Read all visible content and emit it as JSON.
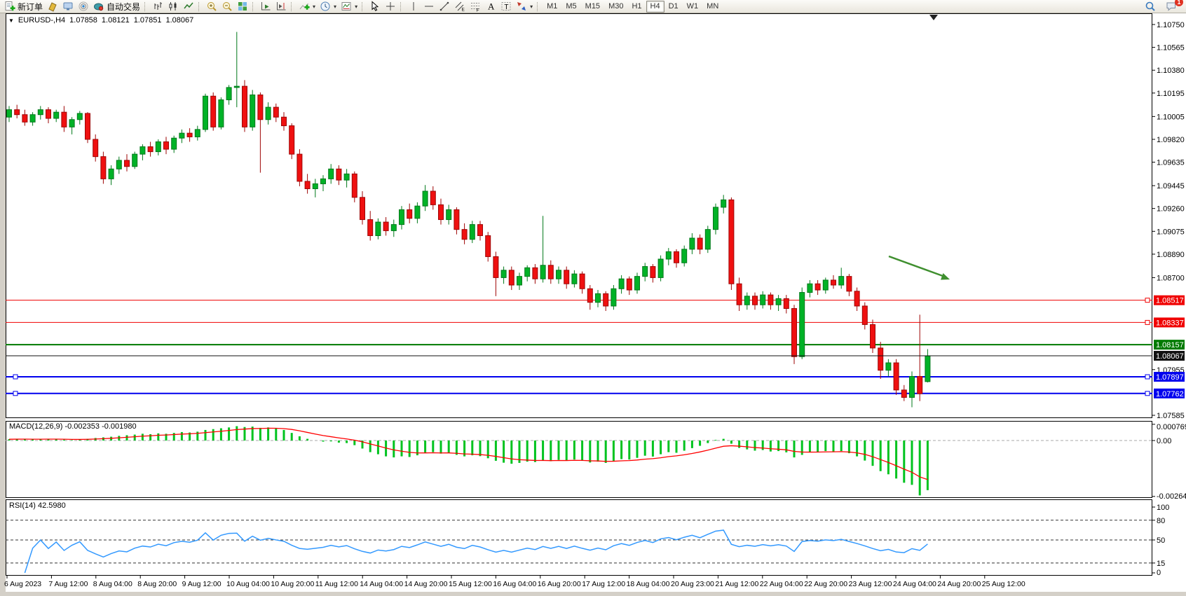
{
  "toolbar": {
    "items": [
      {
        "name": "new-order-button",
        "icon": "new-order",
        "label": "新订单"
      },
      {
        "name": "new-chart-button",
        "icon": "new-chart"
      },
      {
        "name": "profiles-button",
        "icon": "profiles"
      },
      {
        "name": "data-center-button",
        "icon": "signal"
      },
      {
        "name": "auto-trading-button",
        "icon": "auto-trading",
        "label": "自动交易"
      },
      {
        "sep": true
      },
      {
        "name": "bar-chart-button",
        "icon": "bar-chart"
      },
      {
        "name": "candlestick-chart-button",
        "icon": "candlestick-chart"
      },
      {
        "name": "line-chart-button",
        "icon": "line-chart"
      },
      {
        "sep": true
      },
      {
        "name": "zoom-in-button",
        "icon": "zoom-in"
      },
      {
        "name": "zoom-out-button",
        "icon": "zoom-out"
      },
      {
        "name": "tile-windows-button",
        "icon": "tile-windows"
      },
      {
        "sep": true
      },
      {
        "name": "auto-scroll-button",
        "icon": "auto-scroll"
      },
      {
        "name": "chart-shift-button",
        "icon": "chart-shift"
      },
      {
        "sep": true
      },
      {
        "name": "indicators-button",
        "icon": "indicators",
        "dropdown": true
      },
      {
        "name": "periods-button",
        "icon": "clock",
        "dropdown": true
      },
      {
        "name": "templates-button",
        "icon": "template",
        "dropdown": true
      },
      {
        "sep": true
      },
      {
        "name": "cursor-button",
        "icon": "cursor"
      },
      {
        "name": "crosshair-button",
        "icon": "crosshair"
      },
      {
        "sep": true
      },
      {
        "name": "vertical-line-button",
        "icon": "vline"
      },
      {
        "name": "horizontal-line-button",
        "icon": "hline"
      },
      {
        "name": "trendline-button",
        "icon": "trendline"
      },
      {
        "name": "equidistant-channel-button",
        "icon": "channel"
      },
      {
        "name": "fibonacci-button",
        "icon": "fibonacci"
      },
      {
        "name": "text-button",
        "icon": "text"
      },
      {
        "name": "text-label-button",
        "icon": "text-label"
      },
      {
        "name": "arrows-button",
        "icon": "arrows",
        "dropdown": true
      },
      {
        "sep": true
      }
    ],
    "timeframes": [
      "M1",
      "M5",
      "M15",
      "M30",
      "H1",
      "H4",
      "D1",
      "W1",
      "MN"
    ],
    "active_timeframe": "H4",
    "right_items": [
      {
        "name": "search-button",
        "icon": "search"
      },
      {
        "name": "community-button",
        "icon": "community",
        "badge": "1"
      }
    ]
  },
  "chart_header": {
    "expander": "▼",
    "symbol_period": "EURUSD-,H4",
    "open": "1.07858",
    "high": "1.08121",
    "low": "1.07851",
    "close": "1.08067"
  },
  "panes": {
    "macd_label": "MACD(12,26,9) -0.002353 -0.001980",
    "rsi_label": "RSI(14) 42.5980"
  },
  "chart_data": {
    "type": "candlestick",
    "symbol": "EURUSD-",
    "timeframe": "H4",
    "current_bar": {
      "open": 1.07858,
      "high": 1.08121,
      "low": 1.07851,
      "close": 1.08067
    },
    "colors": {
      "up_fill": "#00b227",
      "up_stroke": "#00791a",
      "down_fill": "#ef1010",
      "down_stroke": "#9e0606",
      "macd_histogram": "#00c31f",
      "macd_signal": "#ff0000",
      "rsi_line": "#3399ff",
      "red_line": "#f00000",
      "green_line": "#007a00",
      "blue_line": "#0000ee",
      "bid_line": "#111111",
      "arrow_annotation": "#3f8f2f"
    },
    "price_axis_ticks": [
      {
        "label": "1.10750",
        "price": 1.1075
      },
      {
        "label": "1.10565",
        "price": 1.10565
      },
      {
        "label": "1.10380",
        "price": 1.1038
      },
      {
        "label": "1.10195",
        "price": 1.10195
      },
      {
        "label": "1.10005",
        "price": 1.10005
      },
      {
        "label": "1.09820",
        "price": 1.0982
      },
      {
        "label": "1.09635",
        "price": 1.09635
      },
      {
        "label": "1.09445",
        "price": 1.09445
      },
      {
        "label": "1.09260",
        "price": 1.0926
      },
      {
        "label": "1.09075",
        "price": 1.09075
      },
      {
        "label": "1.08890",
        "price": 1.0889
      },
      {
        "label": "1.08700",
        "price": 1.087
      },
      {
        "label": "1.07955",
        "price": 1.07955
      },
      {
        "label": "1.07585",
        "price": 1.07585
      }
    ],
    "hlines": [
      {
        "price": 1.08517,
        "label": "1.08517",
        "color": "#f00000",
        "width": 1,
        "handles": "right"
      },
      {
        "price": 1.08337,
        "label": "1.08337",
        "color": "#f00000",
        "width": 1,
        "handles": "right"
      },
      {
        "price": 1.08157,
        "label": "1.08157",
        "color": "#007a00",
        "width": 2,
        "handles": "none"
      },
      {
        "price": 1.08067,
        "label": "1.08067",
        "color": "#111111",
        "width": 1,
        "handles": "none",
        "role": "bid"
      },
      {
        "price": 1.07897,
        "label": "1.07897",
        "color": "#0000ee",
        "width": 2,
        "handles": "both"
      },
      {
        "price": 1.07762,
        "label": "1.07762",
        "color": "#0000ee",
        "width": 2,
        "handles": "both"
      }
    ],
    "arrow_annotation": {
      "from": [
        1268,
        366
      ],
      "to": [
        1345,
        394
      ],
      "tip": [
        1355,
        399
      ]
    },
    "candles": [
      [
        1.1,
        1.1009,
        1.0996,
        1.1006
      ],
      [
        1.1006,
        1.101,
        1.0999,
        1.1002
      ],
      [
        1.1002,
        1.1006,
        1.0993,
        1.0996
      ],
      [
        1.0996,
        1.1004,
        1.0993,
        1.1002
      ],
      [
        1.1002,
        1.1009,
        1.0998,
        1.1006
      ],
      [
        1.1006,
        1.1008,
        1.0995,
        1.0999
      ],
      [
        1.0999,
        1.1006,
        1.0996,
        1.1004
      ],
      [
        1.1004,
        1.1009,
        1.0988,
        1.0992
      ],
      [
        1.0992,
        1.1,
        1.0986,
        1.0998
      ],
      [
        1.0998,
        1.1005,
        1.0994,
        1.1003
      ],
      [
        1.1003,
        1.1004,
        1.0979,
        1.0982
      ],
      [
        1.0982,
        1.0986,
        1.0964,
        1.0968
      ],
      [
        1.0968,
        1.0972,
        1.0946,
        1.095
      ],
      [
        1.095,
        1.0961,
        1.0945,
        1.0958
      ],
      [
        1.0958,
        1.0968,
        1.0954,
        1.0965
      ],
      [
        1.0965,
        1.097,
        1.0956,
        1.096
      ],
      [
        1.096,
        1.0972,
        1.0958,
        1.097
      ],
      [
        1.097,
        1.0978,
        1.0965,
        1.0976
      ],
      [
        1.0976,
        1.098,
        1.0968,
        1.0972
      ],
      [
        1.0972,
        1.0982,
        1.0969,
        1.098
      ],
      [
        1.098,
        1.0984,
        1.097,
        1.0974
      ],
      [
        1.0974,
        1.0985,
        1.0971,
        1.0983
      ],
      [
        1.0983,
        1.099,
        1.0979,
        1.0987
      ],
      [
        1.0987,
        1.0991,
        1.098,
        1.0984
      ],
      [
        1.0984,
        1.0993,
        1.0981,
        1.099
      ],
      [
        1.099,
        1.1019,
        1.0988,
        1.1017
      ],
      [
        1.1017,
        1.102,
        1.0989,
        1.0992
      ],
      [
        1.0992,
        1.1016,
        1.099,
        1.1014
      ],
      [
        1.1014,
        1.1026,
        1.101,
        1.1024
      ],
      [
        1.1024,
        1.1069,
        1.1008,
        1.1025
      ],
      [
        1.1025,
        1.103,
        1.0988,
        1.0992
      ],
      [
        1.0992,
        1.1022,
        1.0989,
        1.1018
      ],
      [
        1.1018,
        1.102,
        1.0955,
        1.0998
      ],
      [
        1.0998,
        1.1012,
        1.0994,
        1.1008
      ],
      [
        1.1008,
        1.1011,
        1.0996,
        1.1
      ],
      [
        1.1,
        1.1004,
        1.0989,
        1.0993
      ],
      [
        1.0993,
        1.0995,
        1.0966,
        1.097
      ],
      [
        1.097,
        1.0974,
        1.0944,
        1.0948
      ],
      [
        1.0948,
        1.0954,
        1.0938,
        1.0942
      ],
      [
        1.0942,
        1.095,
        1.0935,
        1.0946
      ],
      [
        1.0946,
        1.0953,
        1.094,
        1.095
      ],
      [
        1.095,
        1.0962,
        1.0946,
        1.0958
      ],
      [
        1.0958,
        1.0961,
        1.0945,
        1.0949
      ],
      [
        1.0949,
        1.0958,
        1.0943,
        1.0954
      ],
      [
        1.0954,
        1.0956,
        1.0931,
        1.0935
      ],
      [
        1.0935,
        1.094,
        1.0913,
        1.0917
      ],
      [
        1.0917,
        1.0924,
        1.09,
        1.0904
      ],
      [
        1.0904,
        1.0918,
        1.0901,
        1.0915
      ],
      [
        1.0915,
        1.0919,
        1.0904,
        1.0908
      ],
      [
        1.0908,
        1.0917,
        1.0903,
        1.0913
      ],
      [
        1.0913,
        1.0928,
        1.0909,
        1.0925
      ],
      [
        1.0925,
        1.093,
        1.0914,
        1.0918
      ],
      [
        1.0918,
        1.0931,
        1.0914,
        1.0928
      ],
      [
        1.0928,
        1.0945,
        1.0924,
        1.094
      ],
      [
        1.094,
        1.0944,
        1.0925,
        1.0929
      ],
      [
        1.0929,
        1.0934,
        1.0913,
        1.0917
      ],
      [
        1.0917,
        1.0929,
        1.0913,
        1.0925
      ],
      [
        1.0925,
        1.0927,
        1.0905,
        1.0909
      ],
      [
        1.0909,
        1.0914,
        1.0897,
        1.0901
      ],
      [
        1.0901,
        1.0916,
        1.0898,
        1.0913
      ],
      [
        1.0913,
        1.0916,
        1.09,
        1.0904
      ],
      [
        1.0904,
        1.0907,
        1.0883,
        1.0887
      ],
      [
        1.0887,
        1.0891,
        1.0855,
        1.087
      ],
      [
        1.087,
        1.0879,
        1.0865,
        1.0876
      ],
      [
        1.0876,
        1.0879,
        1.086,
        1.0864
      ],
      [
        1.0864,
        1.0874,
        1.086,
        1.0871
      ],
      [
        1.0871,
        1.088,
        1.0867,
        1.0878
      ],
      [
        1.0878,
        1.0881,
        1.0865,
        1.0869
      ],
      [
        1.0869,
        1.092,
        1.0866,
        1.088
      ],
      [
        1.088,
        1.0884,
        1.0865,
        1.0869
      ],
      [
        1.0869,
        1.0879,
        1.0865,
        1.0876
      ],
      [
        1.0876,
        1.0879,
        1.0861,
        1.0865
      ],
      [
        1.0865,
        1.0876,
        1.0862,
        1.0873
      ],
      [
        1.0873,
        1.0875,
        1.0857,
        1.0861
      ],
      [
        1.0861,
        1.0864,
        1.0844,
        1.085
      ],
      [
        1.085,
        1.086,
        1.0846,
        1.0857
      ],
      [
        1.0857,
        1.0859,
        1.0843,
        1.0847
      ],
      [
        1.0847,
        1.0864,
        1.0844,
        1.0861
      ],
      [
        1.0861,
        1.0872,
        1.0857,
        1.0869
      ],
      [
        1.0869,
        1.0871,
        1.0856,
        1.086
      ],
      [
        1.086,
        1.0874,
        1.0857,
        1.0871
      ],
      [
        1.0871,
        1.0882,
        1.0867,
        1.0879
      ],
      [
        1.0879,
        1.0881,
        1.0866,
        1.087
      ],
      [
        1.087,
        1.0888,
        1.0867,
        1.0885
      ],
      [
        1.0885,
        1.0894,
        1.088,
        1.0891
      ],
      [
        1.0891,
        1.0893,
        1.0878,
        1.0882
      ],
      [
        1.0882,
        1.0896,
        1.0879,
        1.0893
      ],
      [
        1.0893,
        1.0906,
        1.0889,
        1.0902
      ],
      [
        1.0902,
        1.0905,
        1.0889,
        1.0893
      ],
      [
        1.0893,
        1.0912,
        1.089,
        1.0909
      ],
      [
        1.0909,
        1.093,
        1.0905,
        1.0927
      ],
      [
        1.0927,
        1.0937,
        1.0922,
        1.0933
      ],
      [
        1.0933,
        1.0935,
        1.086,
        1.0865
      ],
      [
        1.0865,
        1.087,
        1.0843,
        1.0848
      ],
      [
        1.0848,
        1.0858,
        1.0844,
        1.0855
      ],
      [
        1.0855,
        1.0858,
        1.0844,
        1.0848
      ],
      [
        1.0848,
        1.0859,
        1.0845,
        1.0856
      ],
      [
        1.0856,
        1.0858,
        1.0844,
        1.0848
      ],
      [
        1.0848,
        1.0856,
        1.0843,
        1.0853
      ],
      [
        1.0853,
        1.0856,
        1.0841,
        1.0845
      ],
      [
        1.0845,
        1.0848,
        1.08,
        1.0806
      ],
      [
        1.0806,
        1.0862,
        1.0804,
        1.0858
      ],
      [
        1.0858,
        1.0868,
        1.0854,
        1.0865
      ],
      [
        1.0865,
        1.0868,
        1.0856,
        1.086
      ],
      [
        1.086,
        1.087,
        1.0857,
        1.0868
      ],
      [
        1.0868,
        1.0872,
        1.0861,
        1.0864
      ],
      [
        1.0864,
        1.0878,
        1.0861,
        1.0871
      ],
      [
        1.0871,
        1.0873,
        1.0855,
        1.0859
      ],
      [
        1.0859,
        1.0862,
        1.0843,
        1.0847
      ],
      [
        1.0847,
        1.085,
        1.0828,
        1.0832
      ],
      [
        1.0832,
        1.0836,
        1.0809,
        1.0813
      ],
      [
        1.0813,
        1.0818,
        1.0788,
        1.0795
      ],
      [
        1.0795,
        1.0804,
        1.079,
        1.0801
      ],
      [
        1.0801,
        1.0804,
        1.0775,
        1.0779
      ],
      [
        1.0779,
        1.0783,
        1.077,
        1.0773
      ],
      [
        1.0773,
        1.0794,
        1.0765,
        1.079
      ],
      [
        1.079,
        1.084,
        1.077,
        1.0776
      ],
      [
        1.07858,
        1.08121,
        1.07851,
        1.08067
      ]
    ],
    "macd": {
      "params": [
        12,
        26,
        9
      ],
      "current_macd": -0.002353,
      "current_signal": -0.00198,
      "axis_labels": [
        {
          "label": "0.000769",
          "value": 0.000769
        },
        {
          "label": "0.00",
          "value": 0
        },
        {
          "label": "-0.002648",
          "value": -0.002648
        }
      ],
      "histogram_unit": 0.0001,
      "histogram": [
        0.6,
        0.8,
        0.7,
        0.5,
        0.6,
        0.8,
        0.7,
        0.4,
        0.2,
        0.5,
        0.8,
        1.2,
        1.5,
        1.8,
        2.2,
        2.5,
        2.8,
        3.2,
        3.0,
        3.4,
        3.2,
        3.6,
        4.0,
        3.8,
        4.2,
        5.0,
        5.4,
        5.8,
        6.2,
        6.8,
        6.4,
        6.6,
        6.0,
        6.2,
        5.8,
        5.0,
        3.6,
        2.0,
        0.8,
        0.0,
        -0.5,
        -0.4,
        -1.0,
        -1.2,
        -2.2,
        -3.8,
        -5.5,
        -6.5,
        -7.5,
        -8.0,
        -7.5,
        -7.8,
        -7.0,
        -5.8,
        -5.5,
        -6.2,
        -5.8,
        -6.8,
        -7.5,
        -7.0,
        -7.4,
        -8.4,
        -9.6,
        -10.5,
        -11.0,
        -10.6,
        -10.0,
        -10.2,
        -9.4,
        -9.8,
        -9.2,
        -9.6,
        -9.0,
        -9.5,
        -10.4,
        -10.0,
        -10.6,
        -9.6,
        -8.8,
        -9.0,
        -8.2,
        -7.2,
        -7.6,
        -6.5,
        -5.5,
        -5.8,
        -4.8,
        -3.6,
        -2.5,
        -1.2,
        0.3,
        0.8,
        -1.5,
        -3.5,
        -4.2,
        -4.8,
        -4.5,
        -5.2,
        -5.0,
        -5.6,
        -8.0,
        -6.8,
        -5.6,
        -5.4,
        -5.0,
        -5.2,
        -5.0,
        -6.0,
        -7.5,
        -9.5,
        -12.0,
        -14.5,
        -16.0,
        -18.0,
        -20.0,
        -21.0,
        -26.0,
        -23.5
      ]
    },
    "rsi": {
      "params": [
        14
      ],
      "current": 42.598,
      "axis_labels": [
        {
          "label": "100",
          "value": 100
        },
        {
          "label": "80",
          "value": 80
        },
        {
          "label": "50",
          "value": 50
        },
        {
          "label": "15",
          "value": 15
        },
        {
          "label": "0",
          "value": 0
        }
      ],
      "dashed_levels": [
        80,
        50,
        15
      ]
    },
    "time_axis": [
      "6 Aug 2023",
      "7 Aug 12:00",
      "8 Aug 04:00",
      "8 Aug 20:00",
      "9 Aug 12:00",
      "10 Aug 04:00",
      "10 Aug 20:00",
      "11 Aug 12:00",
      "14 Aug 04:00",
      "14 Aug 20:00",
      "15 Aug 12:00",
      "16 Aug 04:00",
      "16 Aug 20:00",
      "17 Aug 12:00",
      "18 Aug 04:00",
      "20 Aug 23:00",
      "21 Aug 12:00",
      "22 Aug 04:00",
      "22 Aug 20:00",
      "23 Aug 12:00",
      "24 Aug 04:00",
      "24 Aug 20:00",
      "25 Aug 12:00"
    ]
  }
}
